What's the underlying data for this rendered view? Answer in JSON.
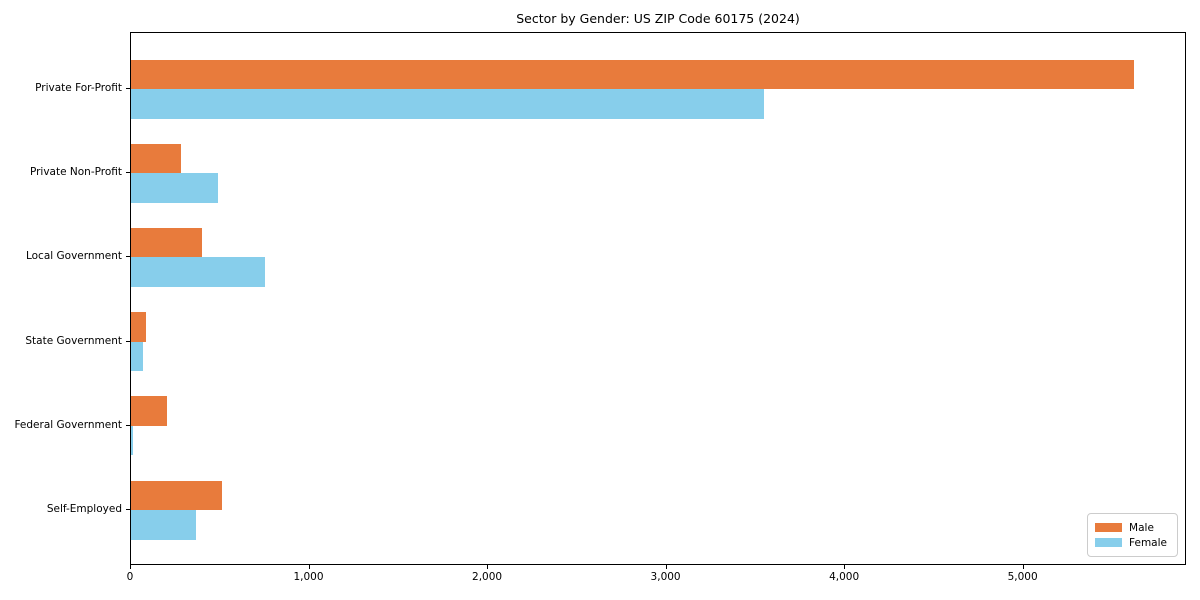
{
  "title": "Sector by Gender: US ZIP Code 60175 (2024)",
  "colors": {
    "male": "#e87b3c",
    "female": "#87ceeb",
    "spine": "#000000",
    "legend_border": "#cccccc",
    "background": "#ffffff"
  },
  "legend": {
    "items": [
      {
        "label": "Male",
        "color": "#e87b3c"
      },
      {
        "label": "Female",
        "color": "#87ceeb"
      }
    ]
  },
  "chart_data": {
    "type": "bar",
    "orientation": "horizontal",
    "title": "Sector by Gender: US ZIP Code 60175 (2024)",
    "categories": [
      "Private For-Profit",
      "Private Non-Profit",
      "Local Government",
      "State Government",
      "Federal Government",
      "Self-Employed"
    ],
    "series": [
      {
        "name": "Male",
        "color": "#e87b3c",
        "values": [
          5630,
          280,
          400,
          85,
          200,
          510
        ]
      },
      {
        "name": "Female",
        "color": "#87ceeb",
        "values": [
          3550,
          490,
          750,
          65,
          10,
          365
        ]
      }
    ],
    "xlabel": "",
    "ylabel": "",
    "xlim": [
      0,
      5915
    ],
    "x_ticks": [
      0,
      1000,
      2000,
      3000,
      4000,
      5000
    ],
    "x_tick_labels": [
      "0",
      "1,000",
      "2,000",
      "3,000",
      "4,000",
      "5,000"
    ],
    "grid": false,
    "legend_position": "lower right"
  }
}
